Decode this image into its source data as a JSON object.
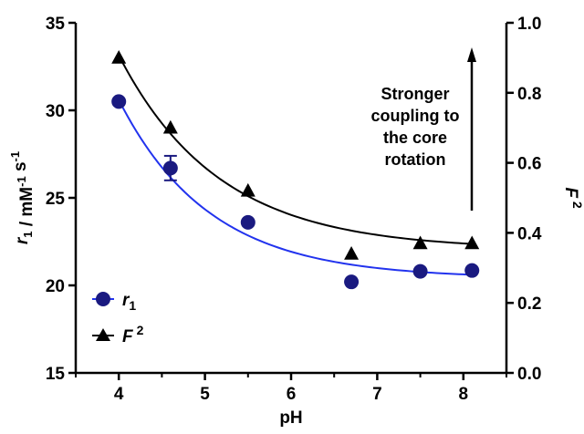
{
  "chart_data": {
    "type": "scatter",
    "xlabel": "pH",
    "ylabel_left": "r1 / mM-1 s-1",
    "ylabel_right": "F2",
    "xlim": [
      3.5,
      8.5
    ],
    "ylim_left": [
      15,
      35
    ],
    "ylim_right": [
      0.0,
      1.0
    ],
    "x_ticks": [
      4,
      5,
      6,
      7,
      8
    ],
    "y_left_ticks": [
      15,
      20,
      25,
      30,
      35
    ],
    "y_right_ticks": [
      0.0,
      0.2,
      0.4,
      0.6,
      0.8,
      1.0
    ],
    "y_right_tick_labels": [
      "0.0",
      "0.2",
      "0.4",
      "0.6",
      "0.8",
      "1.0"
    ],
    "series": [
      {
        "name": "r1",
        "axis": "left",
        "marker": "circle",
        "marker_color": "#1a1a80",
        "fit_color": "#2233ee",
        "x": [
          4.0,
          4.6,
          5.5,
          6.7,
          7.5,
          8.1
        ],
        "y": [
          30.5,
          26.7,
          23.6,
          20.2,
          20.8,
          20.85
        ],
        "error": [
          0,
          0.7,
          0,
          0,
          0,
          0
        ],
        "fit": {
          "model": "exp",
          "plateau": 20.4,
          "a": 10.2,
          "k": 0.95
        }
      },
      {
        "name": "F2",
        "axis": "right",
        "marker": "triangle",
        "marker_color": "#000000",
        "fit_color": "#000000",
        "x": [
          4.0,
          4.6,
          5.5,
          6.7,
          7.5,
          8.1
        ],
        "y": [
          0.9,
          0.7,
          0.52,
          0.34,
          0.37,
          0.37
        ],
        "fit": {
          "model": "exp",
          "plateau": 0.352,
          "a": 0.555,
          "k": 0.86
        }
      }
    ],
    "legend": {
      "position": "bottom-left",
      "entries": [
        {
          "main": "r",
          "sub": "1"
        },
        {
          "main": "F",
          "sup": "2"
        }
      ]
    },
    "annotation": {
      "lines": [
        "Stronger",
        "coupling to",
        "the core",
        "rotation"
      ],
      "arrow": "up"
    },
    "grid": false
  }
}
